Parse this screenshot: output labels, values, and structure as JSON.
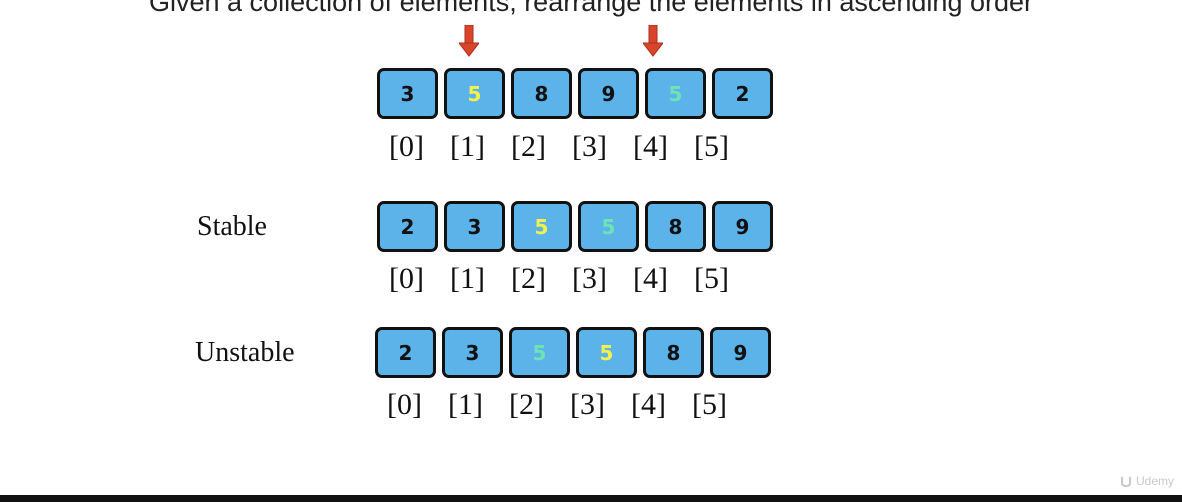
{
  "title": "Given a collection of elements, rearrange the elements in ascending order",
  "colors": {
    "cell_fill": "#5bb3ea",
    "cell_border": "#111111",
    "default_digit": "#111111",
    "yellow_digit": "#f4f24a",
    "green_digit": "#6fe3b5",
    "arrow": "#d9442a"
  },
  "arrows": {
    "icon": "down-arrow-icon",
    "points_to_indices": [
      1,
      4
    ]
  },
  "indices": [
    "[0]",
    "[1]",
    "[2]",
    "[3]",
    "[4]",
    "[5]"
  ],
  "rows": [
    {
      "label": "",
      "cells": [
        {
          "value": "3",
          "color": "default"
        },
        {
          "value": "5",
          "color": "yellow"
        },
        {
          "value": "8",
          "color": "default"
        },
        {
          "value": "9",
          "color": "default"
        },
        {
          "value": "5",
          "color": "green"
        },
        {
          "value": "2",
          "color": "default"
        }
      ]
    },
    {
      "label": "Stable",
      "cells": [
        {
          "value": "2",
          "color": "default"
        },
        {
          "value": "3",
          "color": "default"
        },
        {
          "value": "5",
          "color": "yellow"
        },
        {
          "value": "5",
          "color": "green"
        },
        {
          "value": "8",
          "color": "default"
        },
        {
          "value": "9",
          "color": "default"
        }
      ]
    },
    {
      "label": "Unstable",
      "cells": [
        {
          "value": "2",
          "color": "default"
        },
        {
          "value": "3",
          "color": "default"
        },
        {
          "value": "5",
          "color": "green"
        },
        {
          "value": "5",
          "color": "yellow"
        },
        {
          "value": "8",
          "color": "default"
        },
        {
          "value": "9",
          "color": "default"
        }
      ]
    }
  ],
  "watermark": {
    "text": "Udemy",
    "icon": "udemy-logo-icon"
  }
}
